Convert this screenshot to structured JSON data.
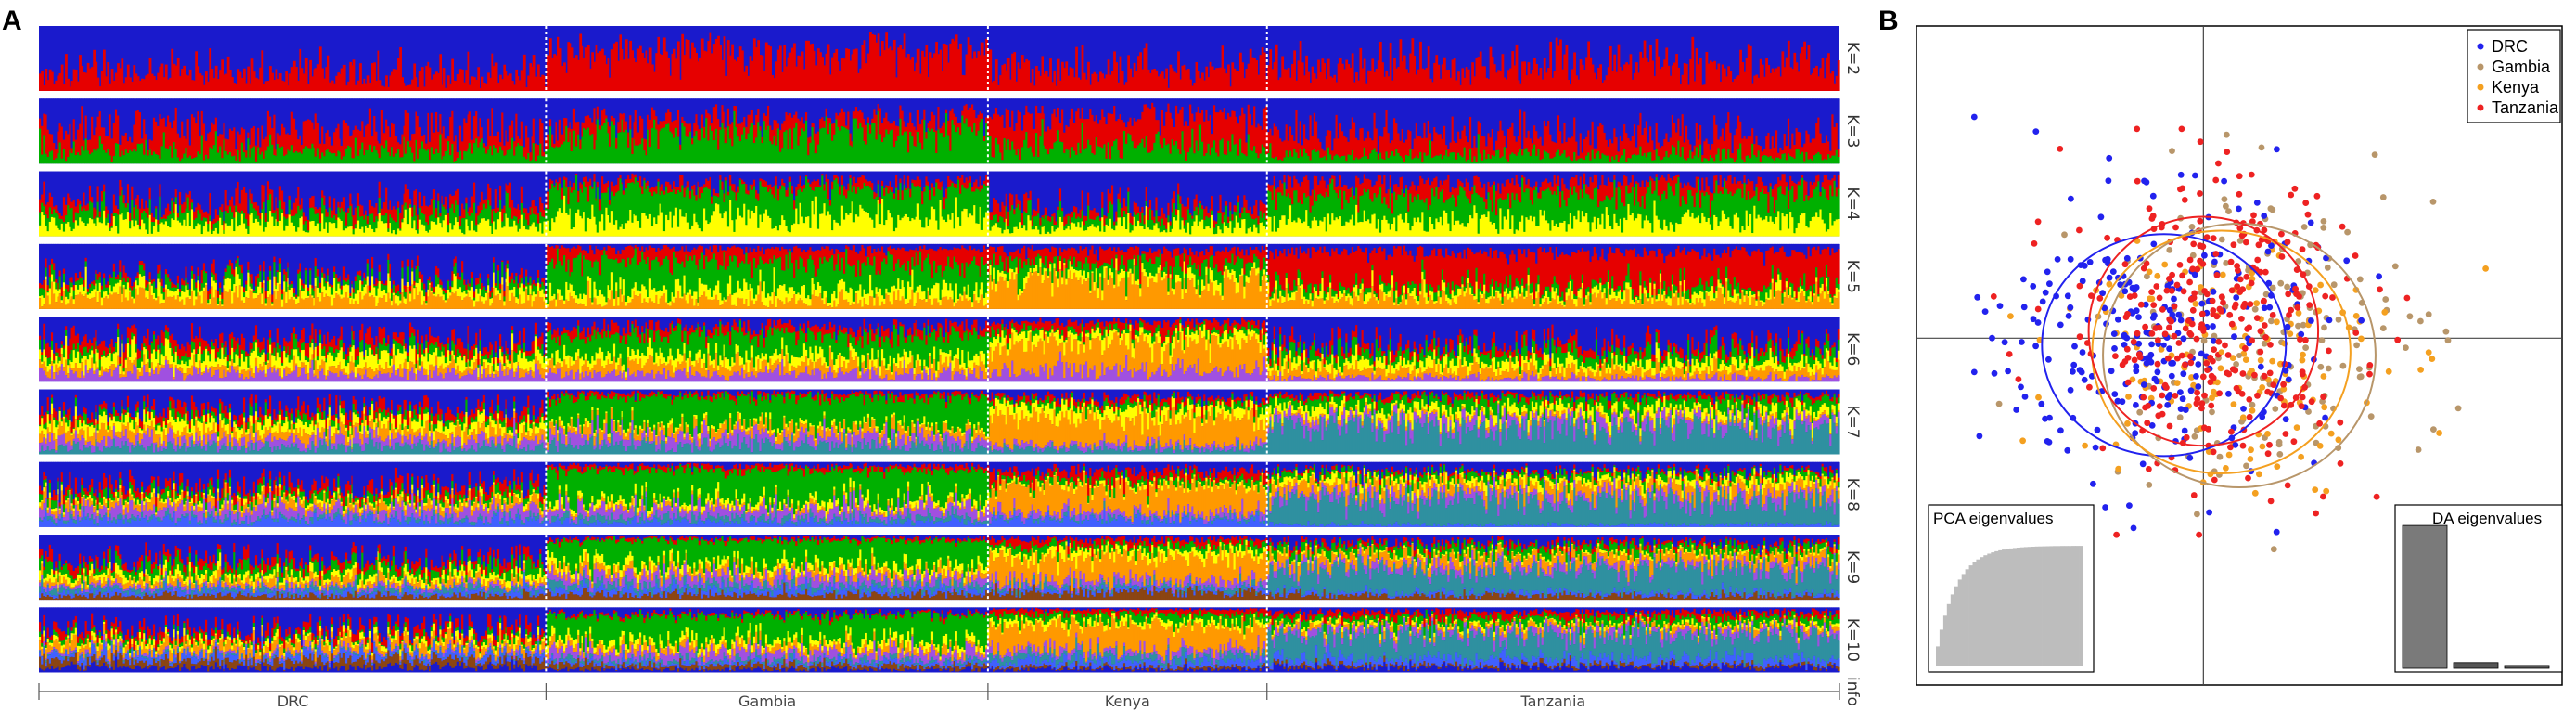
{
  "panels": {
    "a": "A",
    "b": "B"
  },
  "chart_data": [
    {
      "type": "stacked-bar",
      "panel": "A",
      "description_source": "STRUCTURE admixture barplots",
      "k_labels": [
        "K=2",
        "K=3",
        "K=4",
        "K=5",
        "K=6",
        "K=7",
        "K=8",
        "K=9",
        "K=10"
      ],
      "populations": [
        {
          "name": "DRC",
          "share": 0.282
        },
        {
          "name": "Gambia",
          "share": 0.245
        },
        {
          "name": "Kenya",
          "share": 0.155
        },
        {
          "name": "Tanzania",
          "share": 0.318
        }
      ],
      "axis_end_label": "info",
      "palette": [
        "#1a1acc",
        "#e60000",
        "#00b000",
        "#ffff00",
        "#ff9900",
        "#a050e0",
        "#2f90a0",
        "#4060ff",
        "#8b4513",
        "#b0a0ff"
      ],
      "dominant_clusters": {
        "K=2": {
          "DRC": [
            0.72,
            0.28
          ],
          "Gambia": [
            0.45,
            0.55
          ],
          "Kenya": [
            0.7,
            0.3
          ],
          "Tanzania": [
            0.65,
            0.35
          ]
        }
      }
    },
    {
      "type": "scatter",
      "panel": "B",
      "xlim": [
        -4,
        5
      ],
      "ylim": [
        -5,
        4.5
      ],
      "grid": false,
      "legend_position": "top-right",
      "series": [
        {
          "name": "DRC",
          "color": "#2222ee",
          "center": [
            -0.6,
            0.0
          ],
          "spread": [
            1.1,
            1.0
          ],
          "n": 260
        },
        {
          "name": "Gambia",
          "color": "#b8966a",
          "center": [
            0.9,
            0.1
          ],
          "spread": [
            1.2,
            1.1
          ],
          "n": 150
        },
        {
          "name": "Kenya",
          "color": "#f4a020",
          "center": [
            0.3,
            -0.2
          ],
          "spread": [
            1.1,
            1.0
          ],
          "n": 150
        },
        {
          "name": "Tanzania",
          "color": "#ee2222",
          "center": [
            0.1,
            0.2
          ],
          "spread": [
            1.0,
            1.1
          ],
          "n": 320
        }
      ],
      "ellipses": [
        {
          "name": "DRC",
          "color": "#2222ee",
          "cx": -0.55,
          "cy": -0.1,
          "rx": 1.7,
          "ry": 1.6
        },
        {
          "name": "Gambia",
          "color": "#b8966a",
          "cx": 0.5,
          "cy": -0.25,
          "rx": 1.9,
          "ry": 1.9
        },
        {
          "name": "Kenya",
          "color": "#f4a020",
          "cx": 0.25,
          "cy": -0.2,
          "rx": 1.8,
          "ry": 1.75
        },
        {
          "name": "Tanzania",
          "color": "#ee2222",
          "cx": 0.0,
          "cy": 0.1,
          "rx": 1.6,
          "ry": 1.65
        }
      ],
      "insets": {
        "pca": {
          "title": "PCA eigenvalues",
          "shape": "cumulative-saturating",
          "bars": 40
        },
        "da": {
          "title": "DA eigenvalues",
          "values": [
            1.0,
            0.04,
            0.02
          ]
        }
      }
    }
  ]
}
